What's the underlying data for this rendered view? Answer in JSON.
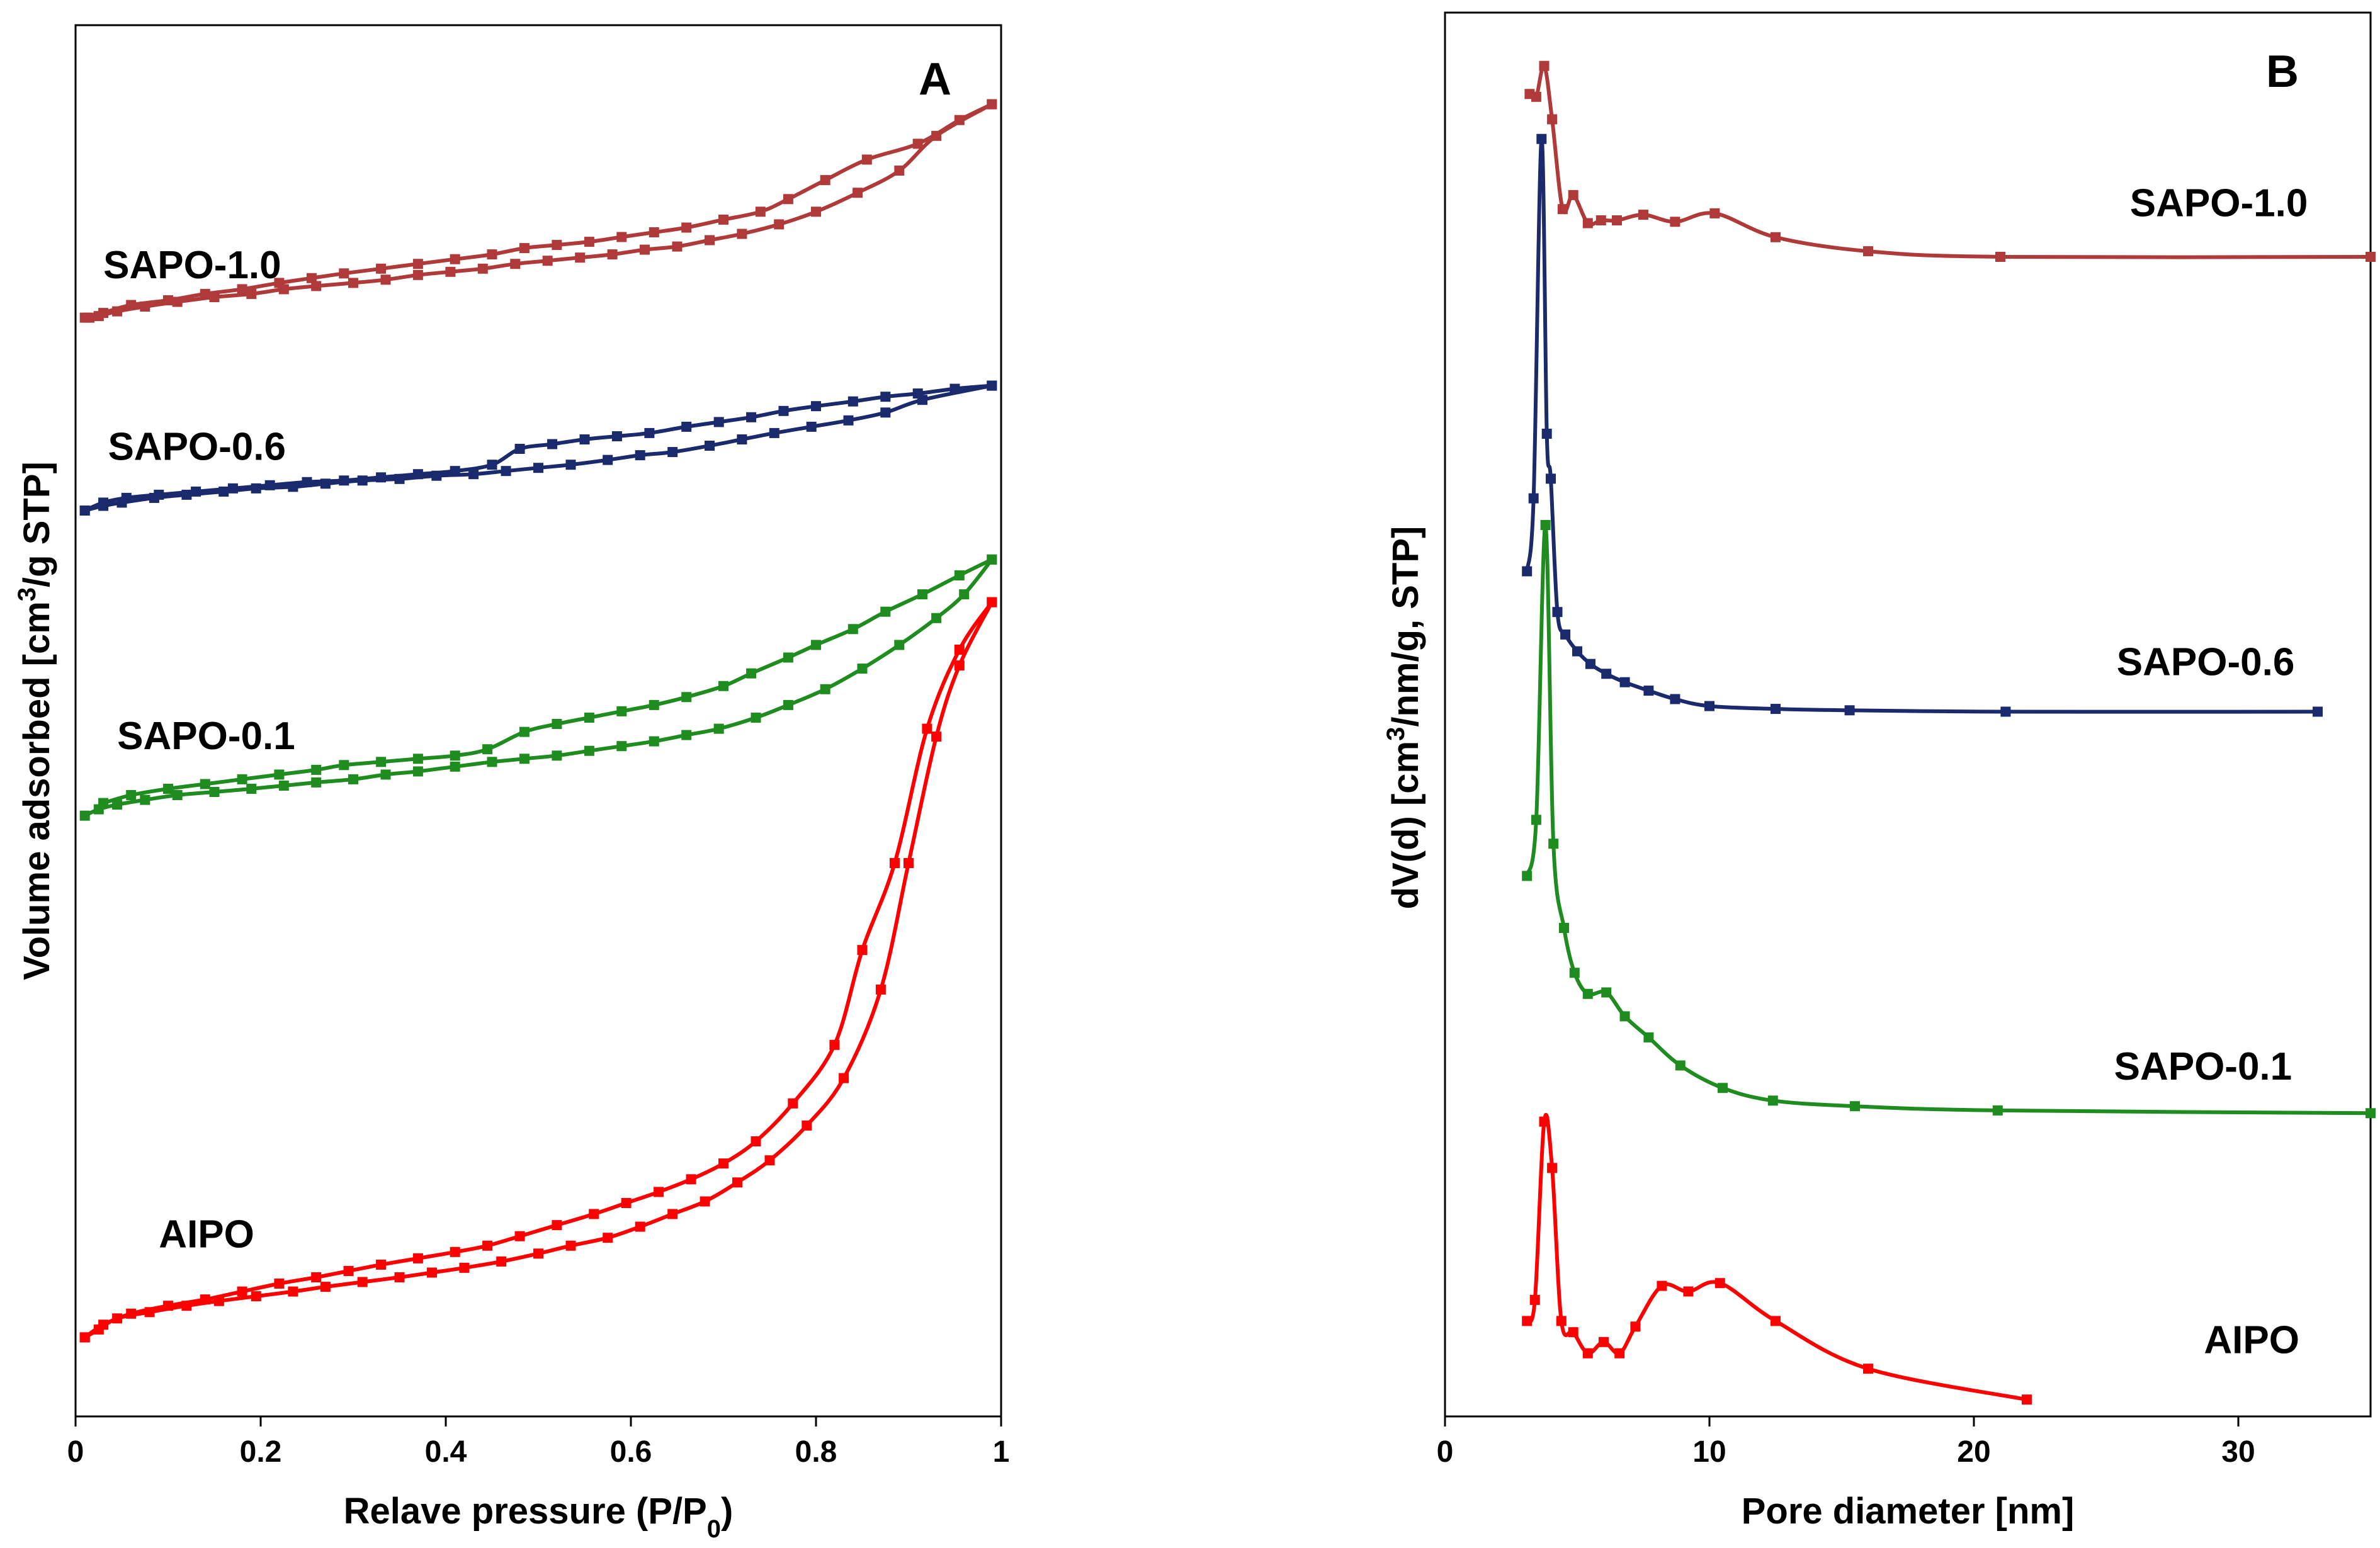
{
  "chart_data": [
    {
      "id": "A",
      "type": "line",
      "panel_label": "A",
      "xlabel_parts": [
        "Relave pressure (P/P",
        "0",
        ")"
      ],
      "ylabel_parts": [
        "Volume adsorbed [cm",
        "3",
        "/g STP]"
      ],
      "xlim": [
        0,
        1
      ],
      "ylim": [
        0,
        8.8
      ],
      "xticks": [
        0,
        0.2,
        0.4,
        0.6,
        0.8,
        1
      ],
      "xtick_labels": [
        "0",
        "0.2",
        "0.4",
        "0.6",
        "0.8",
        "1"
      ],
      "y_tick_labels_shown": false,
      "series": [
        {
          "name": "SAPO-1.0",
          "label": "SAPO-1.0",
          "color": "#b03a3a",
          "label_pos": {
            "x": 0.03,
            "y": 7.2
          },
          "branches": [
            {
              "x": [
                0.01,
                0.025,
                0.045,
                0.075,
                0.11,
                0.15,
                0.19,
                0.225,
                0.26,
                0.3,
                0.335,
                0.37,
                0.405,
                0.44,
                0.475,
                0.51,
                0.545,
                0.58,
                0.615,
                0.65,
                0.685,
                0.72,
                0.76,
                0.8,
                0.845,
                0.89,
                0.93,
                0.99
              ],
              "y": [
                6.95,
                6.96,
                6.99,
                7.02,
                7.05,
                7.08,
                7.1,
                7.13,
                7.15,
                7.17,
                7.19,
                7.22,
                7.24,
                7.26,
                7.29,
                7.31,
                7.33,
                7.35,
                7.38,
                7.4,
                7.44,
                7.48,
                7.54,
                7.62,
                7.74,
                7.88,
                8.1,
                8.3
              ]
            },
            {
              "x": [
                0.99,
                0.955,
                0.91,
                0.855,
                0.81,
                0.77,
                0.74,
                0.7,
                0.66,
                0.625,
                0.59,
                0.555,
                0.52,
                0.485,
                0.45,
                0.41,
                0.37,
                0.33,
                0.29,
                0.255,
                0.22,
                0.18,
                0.14,
                0.1,
                0.06,
                0.03,
                0.015
              ],
              "y": [
                8.3,
                8.2,
                8.05,
                7.95,
                7.82,
                7.7,
                7.62,
                7.57,
                7.52,
                7.49,
                7.46,
                7.43,
                7.41,
                7.39,
                7.35,
                7.32,
                7.29,
                7.26,
                7.23,
                7.2,
                7.17,
                7.13,
                7.1,
                7.06,
                7.03,
                6.98,
                6.95
              ]
            }
          ]
        },
        {
          "name": "SAPO-0.6",
          "label": "SAPO-0.6",
          "color": "#1a2a6c",
          "label_pos": {
            "x": 0.035,
            "y": 6.05
          },
          "branches": [
            {
              "x": [
                0.01,
                0.03,
                0.05,
                0.085,
                0.12,
                0.16,
                0.195,
                0.235,
                0.27,
                0.31,
                0.35,
                0.39,
                0.43,
                0.465,
                0.5,
                0.535,
                0.575,
                0.61,
                0.645,
                0.685,
                0.72,
                0.755,
                0.795,
                0.835,
                0.875,
                0.915,
                0.99
              ],
              "y": [
                5.73,
                5.76,
                5.78,
                5.81,
                5.83,
                5.85,
                5.87,
                5.88,
                5.9,
                5.92,
                5.93,
                5.95,
                5.96,
                5.98,
                6.0,
                6.02,
                6.05,
                6.08,
                6.1,
                6.14,
                6.18,
                6.22,
                6.26,
                6.3,
                6.35,
                6.43,
                6.52
              ]
            },
            {
              "x": [
                0.99,
                0.95,
                0.91,
                0.875,
                0.84,
                0.8,
                0.765,
                0.73,
                0.695,
                0.66,
                0.62,
                0.585,
                0.55,
                0.515,
                0.48,
                0.45,
                0.41,
                0.37,
                0.33,
                0.29,
                0.25,
                0.21,
                0.17,
                0.13,
                0.09,
                0.055,
                0.03,
                0.01
              ],
              "y": [
                6.52,
                6.5,
                6.47,
                6.45,
                6.42,
                6.39,
                6.36,
                6.32,
                6.29,
                6.26,
                6.22,
                6.2,
                6.18,
                6.15,
                6.12,
                6.02,
                5.98,
                5.96,
                5.94,
                5.92,
                5.91,
                5.89,
                5.87,
                5.85,
                5.83,
                5.81,
                5.78,
                5.73
              ]
            }
          ]
        },
        {
          "name": "SAPO-0.1",
          "label": "SAPO-0.1",
          "color": "#1e8c1e",
          "label_pos": {
            "x": 0.045,
            "y": 4.22
          },
          "branches": [
            {
              "x": [
                0.01,
                0.025,
                0.045,
                0.075,
                0.11,
                0.15,
                0.19,
                0.225,
                0.26,
                0.3,
                0.335,
                0.37,
                0.41,
                0.45,
                0.485,
                0.52,
                0.555,
                0.59,
                0.625,
                0.66,
                0.695,
                0.735,
                0.77,
                0.81,
                0.85,
                0.89,
                0.93,
                0.96,
                0.99
              ],
              "y": [
                3.8,
                3.84,
                3.87,
                3.9,
                3.93,
                3.95,
                3.97,
                3.99,
                4.01,
                4.03,
                4.06,
                4.08,
                4.11,
                4.14,
                4.16,
                4.18,
                4.21,
                4.24,
                4.27,
                4.31,
                4.35,
                4.42,
                4.5,
                4.6,
                4.73,
                4.88,
                5.05,
                5.2,
                5.42
              ]
            },
            {
              "x": [
                0.99,
                0.955,
                0.915,
                0.875,
                0.84,
                0.8,
                0.77,
                0.73,
                0.7,
                0.66,
                0.625,
                0.59,
                0.555,
                0.52,
                0.485,
                0.445,
                0.41,
                0.37,
                0.33,
                0.29,
                0.26,
                0.22,
                0.18,
                0.14,
                0.1,
                0.06,
                0.03
              ],
              "y": [
                5.42,
                5.32,
                5.2,
                5.09,
                4.98,
                4.88,
                4.8,
                4.7,
                4.62,
                4.55,
                4.5,
                4.46,
                4.42,
                4.38,
                4.33,
                4.22,
                4.18,
                4.16,
                4.14,
                4.12,
                4.09,
                4.06,
                4.03,
                4.0,
                3.97,
                3.93,
                3.88
              ]
            }
          ]
        },
        {
          "name": "AIPO",
          "label": "AIPO",
          "color": "#ff0000",
          "label_pos": {
            "x": 0.09,
            "y": 1.07
          },
          "branches": [
            {
              "x": [
                0.01,
                0.025,
                0.045,
                0.08,
                0.12,
                0.155,
                0.195,
                0.235,
                0.27,
                0.31,
                0.35,
                0.385,
                0.42,
                0.46,
                0.5,
                0.535,
                0.575,
                0.61,
                0.645,
                0.68,
                0.715,
                0.75,
                0.79,
                0.83,
                0.87,
                0.9,
                0.93,
                0.955,
                0.99
              ],
              "y": [
                0.5,
                0.55,
                0.62,
                0.66,
                0.7,
                0.73,
                0.76,
                0.79,
                0.82,
                0.85,
                0.88,
                0.91,
                0.94,
                0.98,
                1.03,
                1.08,
                1.13,
                1.2,
                1.28,
                1.36,
                1.48,
                1.62,
                1.84,
                2.14,
                2.7,
                3.5,
                4.3,
                4.75,
                5.15
              ]
            },
            {
              "x": [
                0.99,
                0.955,
                0.92,
                0.885,
                0.85,
                0.82,
                0.775,
                0.735,
                0.7,
                0.665,
                0.63,
                0.595,
                0.56,
                0.52,
                0.48,
                0.445,
                0.41,
                0.37,
                0.33,
                0.295,
                0.26,
                0.22,
                0.18,
                0.14,
                0.1,
                0.06,
                0.03,
                0.01
              ],
              "y": [
                5.15,
                4.85,
                4.35,
                3.5,
                2.95,
                2.35,
                1.98,
                1.74,
                1.6,
                1.5,
                1.42,
                1.35,
                1.28,
                1.21,
                1.14,
                1.08,
                1.04,
                1.0,
                0.96,
                0.92,
                0.88,
                0.84,
                0.79,
                0.74,
                0.7,
                0.65,
                0.58,
                0.5
              ]
            }
          ]
        }
      ]
    },
    {
      "id": "B",
      "type": "line",
      "panel_label": "B",
      "xlabel": "Pore diameter [nm]",
      "ylabel_parts": [
        "dV(d) [cm",
        "3",
        "/nm/g, STP]"
      ],
      "xlim": [
        0,
        35
      ],
      "ylim": [
        0,
        10
      ],
      "xticks": [
        0,
        10,
        20,
        30
      ],
      "xtick_labels": [
        "0",
        "10",
        "20",
        "30"
      ],
      "y_tick_labels_shown": false,
      "series": [
        {
          "name": "SAPO-1.0",
          "label": "SAPO-1.0",
          "color": "#b03a3a",
          "label_pos": {
            "x": 25.9,
            "y": 8.55
          },
          "x": [
            3.2,
            3.45,
            3.75,
            4.05,
            4.45,
            4.85,
            5.4,
            5.9,
            6.5,
            7.5,
            8.7,
            10.2,
            12.5,
            16,
            21,
            35
          ],
          "y": [
            9.42,
            9.4,
            9.62,
            9.24,
            8.6,
            8.7,
            8.5,
            8.52,
            8.52,
            8.56,
            8.51,
            8.57,
            8.4,
            8.3,
            8.26,
            8.26
          ]
        },
        {
          "name": "SAPO-0.6",
          "label": "SAPO-0.6",
          "color": "#1a2a6c",
          "label_pos": {
            "x": 25.4,
            "y": 5.28
          },
          "x": [
            3.1,
            3.35,
            3.65,
            3.85,
            4.0,
            4.25,
            4.55,
            5.0,
            5.5,
            6.1,
            6.8,
            7.7,
            8.7,
            10,
            12.5,
            15.3,
            21.2,
            33
          ],
          "y": [
            6.02,
            6.54,
            9.1,
            7.0,
            6.68,
            5.73,
            5.57,
            5.45,
            5.36,
            5.29,
            5.23,
            5.17,
            5.11,
            5.06,
            5.04,
            5.03,
            5.02,
            5.02
          ]
        },
        {
          "name": "SAPO-0.1",
          "label": "SAPO-0.1",
          "color": "#1e8c1e",
          "label_pos": {
            "x": 25.3,
            "y": 2.4
          },
          "x": [
            3.1,
            3.45,
            3.8,
            4.1,
            4.5,
            4.9,
            5.4,
            6.1,
            6.8,
            7.7,
            8.9,
            10.5,
            12.4,
            15.5,
            20.9,
            35
          ],
          "y": [
            3.85,
            4.25,
            6.35,
            4.08,
            3.48,
            3.16,
            3.01,
            3.02,
            2.85,
            2.7,
            2.5,
            2.34,
            2.25,
            2.21,
            2.18,
            2.16
          ]
        },
        {
          "name": "AIPO",
          "label": "AIPO",
          "color": "#ff0000",
          "label_pos": {
            "x": 28.7,
            "y": 0.45
          },
          "x": [
            3.1,
            3.4,
            3.75,
            4.05,
            4.4,
            4.85,
            5.4,
            6.0,
            6.6,
            7.2,
            8.2,
            9.2,
            10.4,
            12.5,
            16,
            22
          ],
          "y": [
            0.68,
            0.83,
            2.1,
            1.77,
            0.68,
            0.6,
            0.45,
            0.53,
            0.45,
            0.64,
            0.93,
            0.89,
            0.95,
            0.68,
            0.34,
            0.12
          ]
        }
      ]
    }
  ]
}
